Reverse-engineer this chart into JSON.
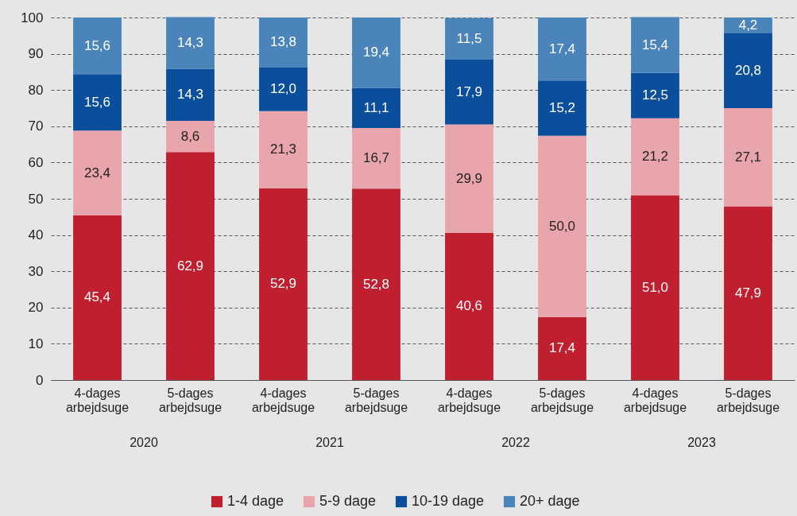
{
  "chart_data": {
    "type": "bar",
    "stacked": true,
    "categories": [
      "4-dages arbejdsuge",
      "5-dages arbejdsuge",
      "4-dages arbejdsuge",
      "5-dages arbejdsuge",
      "4-dages arbejdsuge",
      "5-dages arbejdsuge",
      "4-dages arbejdsuge",
      "5-dages arbejdsuge"
    ],
    "series": [
      {
        "name": "1-4 dage",
        "color": "#c01f2f",
        "values": [
          45.4,
          62.9,
          52.9,
          52.8,
          40.6,
          17.4,
          51.0,
          47.9
        ],
        "value_labels": [
          "45,4",
          "62,9",
          "52,9",
          "52,8",
          "40,6",
          "17,4",
          "51,0",
          "47,9"
        ]
      },
      {
        "name": "5-9 dage",
        "color": "#e8a6ac",
        "values": [
          23.4,
          8.6,
          21.3,
          16.7,
          29.9,
          50.0,
          21.2,
          27.1
        ],
        "value_labels": [
          "23,4",
          "8,6",
          "21,3",
          "16,7",
          "29,9",
          "50,0",
          "21,2",
          "27,1"
        ]
      },
      {
        "name": "10-19 dage",
        "color": "#0b4f9c",
        "values": [
          15.6,
          14.3,
          12.0,
          11.1,
          17.9,
          15.2,
          12.5,
          20.8
        ],
        "value_labels": [
          "15,6",
          "14,3",
          "12,0",
          "11,1",
          "17,9",
          "15,2",
          "12,5",
          "20,8"
        ]
      },
      {
        "name": "20+ dage",
        "color": "#4a84ba",
        "values": [
          15.6,
          14.3,
          13.8,
          19.4,
          11.5,
          17.4,
          15.4,
          4.2
        ],
        "value_labels": [
          "15,6",
          "14,3",
          "13,8",
          "19,4",
          "11,5",
          "17,4",
          "15,4",
          "4,2"
        ]
      }
    ],
    "annotations": [
      "2020",
      "2021",
      "2022",
      "2023"
    ],
    "ylim": [
      0,
      100
    ],
    "yticks": [
      0,
      10,
      20,
      30,
      40,
      50,
      60,
      70,
      80,
      90,
      100
    ],
    "grid": "y",
    "legend": "bottom"
  }
}
